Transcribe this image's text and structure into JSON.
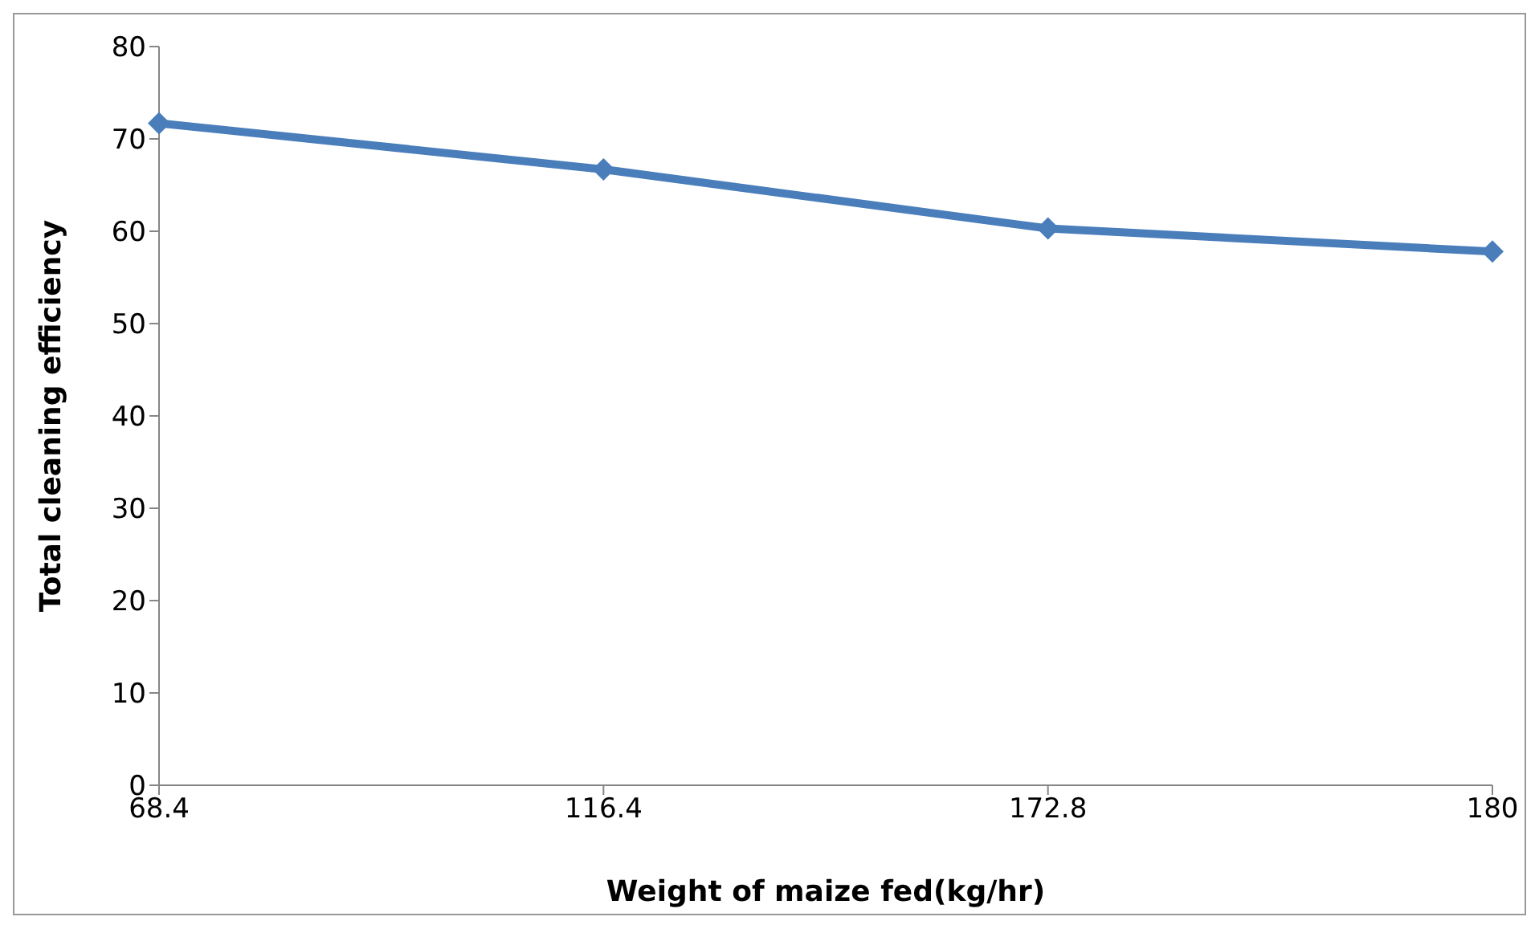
{
  "chart_data": {
    "type": "line",
    "xlabel": "Weight of maize fed(kg/hr)",
    "ylabel": "Total cleaning efficiency",
    "categories": [
      "68.4",
      "116.4",
      "172.8",
      "180"
    ],
    "series": [
      {
        "color": "#4a7ebb",
        "values": [
          71.7,
          66.7,
          60.3,
          57.8
        ]
      }
    ],
    "ylim": [
      0,
      80
    ],
    "yticks": [
      0,
      10,
      20,
      30,
      40,
      50,
      60,
      70,
      80
    ],
    "grid": false,
    "legend": false,
    "marker": "diamond",
    "line_style": "solid"
  }
}
